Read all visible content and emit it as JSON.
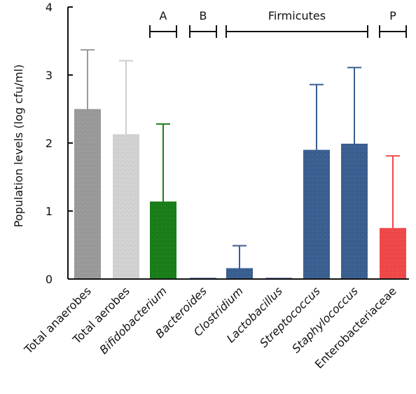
{
  "chart_data": {
    "type": "bar",
    "ylabel": "Population levels (log cfu/ml)",
    "ylim": [
      0,
      4
    ],
    "yticks": [
      "0",
      "1",
      "2",
      "3",
      "4"
    ],
    "grid": false,
    "categories": [
      {
        "label": "Total anaerobes",
        "italic": false
      },
      {
        "label": "Total aerobes",
        "italic": false
      },
      {
        "label": "Bifidobacterium",
        "italic": true
      },
      {
        "label": "Bacteroides",
        "italic": true
      },
      {
        "label": "Clostridium",
        "italic": true
      },
      {
        "label": "Lactobacillus",
        "italic": true
      },
      {
        "label": "Streptococcus",
        "italic": true
      },
      {
        "label": "Staphylococcus",
        "italic": true
      },
      {
        "label": "Enterobacteriaceae",
        "italic": false
      }
    ],
    "values": [
      2.5,
      2.13,
      1.14,
      0.0,
      0.16,
      0.0,
      1.9,
      1.99,
      0.75
    ],
    "errors": [
      0.87,
      1.08,
      1.14,
      0.0,
      0.33,
      0.0,
      0.96,
      1.12,
      1.06
    ],
    "bar_colors": [
      "#9a9a9a",
      "#d2d2d2",
      "#1a7d1a",
      "#3a5f91",
      "#3a5f91",
      "#3a5f91",
      "#3a5f91",
      "#3a5f91",
      "#f04848"
    ],
    "error_colors": [
      "#9a9a9a",
      "#cfcfcf",
      "#1a7d1a",
      "#3a5f91",
      "#3a5f91",
      "#3a5f91",
      "#3a5f91",
      "#3a5f91",
      "#f04848"
    ],
    "groups": [
      {
        "label": "A",
        "from": 2,
        "to": 2
      },
      {
        "label": "B",
        "from": 3,
        "to": 3
      },
      {
        "label": "Firmicutes",
        "from": 4,
        "to": 7
      },
      {
        "label": "P",
        "from": 8,
        "to": 8
      }
    ]
  }
}
